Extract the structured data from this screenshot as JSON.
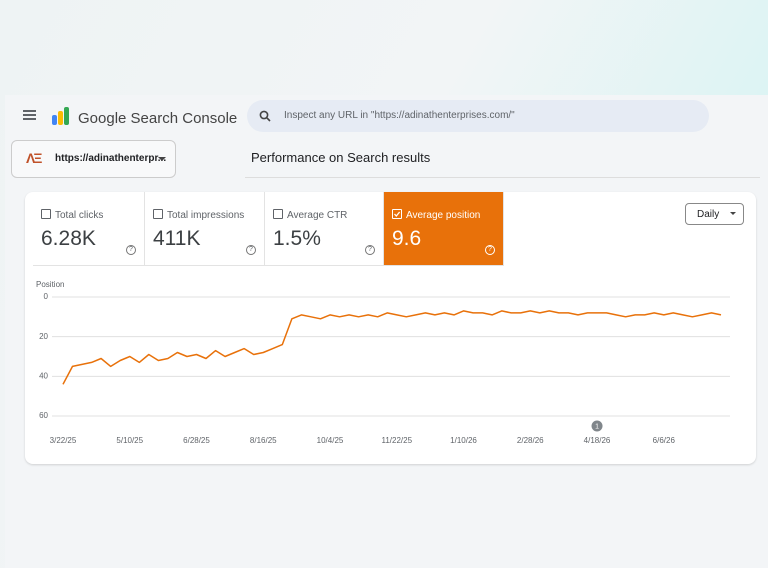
{
  "header": {
    "product": "Google Search Console",
    "search_placeholder": "Inspect any URL in \"https://adinathenterprises.com/\""
  },
  "property": "https://adinathenterpr...",
  "page_title": "Performance on Search results",
  "metrics": [
    {
      "label": "Total clicks",
      "value": "6.28K",
      "checked": false
    },
    {
      "label": "Total impressions",
      "value": "411K",
      "checked": false
    },
    {
      "label": "Average CTR",
      "value": "1.5%",
      "checked": false
    },
    {
      "label": "Average position",
      "value": "9.6",
      "checked": true
    }
  ],
  "granularity": "Daily",
  "chart_data": {
    "type": "line",
    "y_label": "Position",
    "color": "#e8710a",
    "x": [
      "3/22/25",
      "3/29/25",
      "4/5/25",
      "4/12/25",
      "4/19/25",
      "4/26/25",
      "5/3/25",
      "5/10/25",
      "5/17/25",
      "5/24/25",
      "5/31/25",
      "6/7/25",
      "6/14/25",
      "6/21/25",
      "6/28/25",
      "7/5/25",
      "7/12/25",
      "7/19/25",
      "7/26/25",
      "8/2/25",
      "8/9/25",
      "8/16/25",
      "8/23/25",
      "8/30/25",
      "9/6/25",
      "9/13/25",
      "9/20/25",
      "9/27/25",
      "10/4/25",
      "10/11/25",
      "10/18/25",
      "10/25/25",
      "11/1/25",
      "11/8/25",
      "11/15/25",
      "11/22/25",
      "11/29/25",
      "12/6/25",
      "12/13/25",
      "12/20/25",
      "12/27/25",
      "1/3/26",
      "1/10/26",
      "1/17/26",
      "1/24/26",
      "1/31/26",
      "2/7/26",
      "2/14/26",
      "2/21/26",
      "2/28/26",
      "3/7/26",
      "3/14/26",
      "3/21/26",
      "3/28/26",
      "4/4/26",
      "4/11/26",
      "4/18/26",
      "4/25/26",
      "5/2/26",
      "5/9/26",
      "5/16/26",
      "5/23/26",
      "5/30/26",
      "6/6/26",
      "6/13/26",
      "6/20/26",
      "6/27/26",
      "7/4/26",
      "7/11/26",
      "7/18/26"
    ],
    "values": [
      44,
      35,
      34,
      33,
      31,
      35,
      32,
      30,
      33,
      29,
      32,
      31,
      28,
      30,
      29,
      31,
      27,
      30,
      28,
      26,
      29,
      28,
      26,
      24,
      11,
      9,
      10,
      11,
      9,
      10,
      9,
      10,
      9,
      10,
      8,
      9,
      10,
      9,
      8,
      9,
      8,
      9,
      7,
      8,
      8,
      9,
      7,
      8,
      8,
      7,
      8,
      7,
      8,
      8,
      9,
      8,
      8,
      8,
      9,
      10,
      9,
      9,
      8,
      9,
      8,
      9,
      10,
      9,
      8,
      9
    ],
    "ylim": [
      0,
      60
    ],
    "y_reversed": true,
    "yticks": [
      0,
      20,
      40,
      60
    ],
    "grid": true,
    "xticks": [
      "3/22/25",
      "5/10/25",
      "6/28/25",
      "8/16/25",
      "10/4/25",
      "11/22/25",
      "1/10/26",
      "2/28/26",
      "4/18/26",
      "6/6/26"
    ],
    "annotation": {
      "x": "4/18/26",
      "label": "1"
    }
  }
}
